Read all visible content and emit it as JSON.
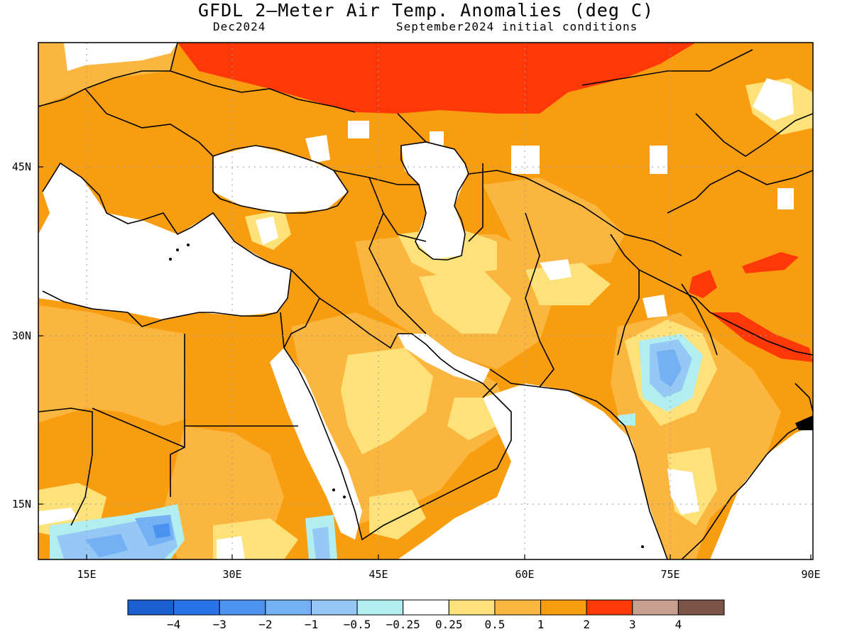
{
  "title": "GFDL 2—Meter Air Temp. Anomalies (deg C)",
  "subtitle_left": "Dec2024",
  "subtitle_right": "September2024 initial conditions",
  "lon_ticks": [
    "15E",
    "30E",
    "45E",
    "60E",
    "75E",
    "90E"
  ],
  "lat_ticks": [
    "45N",
    "30N",
    "15N"
  ],
  "colorbar": {
    "colors": [
      "#1a5fd0",
      "#2a72e8",
      "#4a93f0",
      "#74b0f4",
      "#96c8f6",
      "#b2eef0",
      "#ffffff",
      "#fde27a",
      "#fbb640",
      "#f99d10",
      "#ff3808",
      "#c8a090",
      "#7a5446"
    ],
    "labels": [
      "−4",
      "−3",
      "−2",
      "−1",
      "−0.5",
      "−0.25",
      "0.25",
      "0.5",
      "1",
      "2",
      "3",
      "4"
    ]
  },
  "map_colors": {
    "orange": "#f99d10",
    "light_orange": "#fbb640",
    "yellow": "#fde27a",
    "red": "#ff3808",
    "light_blue": "#96c8f6",
    "blue": "#74b0f4",
    "dark_blue": "#4a93f0",
    "cyan": "#b2eef0"
  }
}
